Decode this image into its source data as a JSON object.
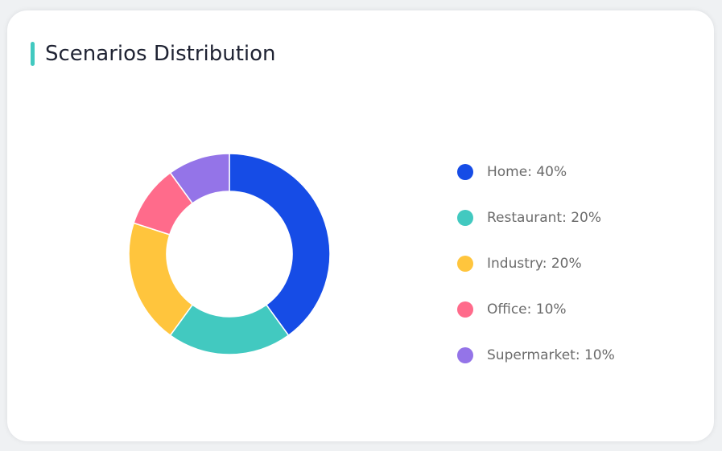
{
  "title": "Scenarios Distribution",
  "accent_color": "#42c9c0",
  "chart_data": {
    "type": "pie",
    "donut": true,
    "legend_position": "right",
    "series": [
      {
        "name": "Home",
        "value": 40,
        "label": "Home: 40%",
        "color": "#164ce6"
      },
      {
        "name": "Restaurant",
        "value": 20,
        "label": "Restaurant: 20%",
        "color": "#42c9c0"
      },
      {
        "name": "Industry",
        "value": 20,
        "label": "Industry: 20%",
        "color": "#ffc53d"
      },
      {
        "name": "Office",
        "value": 10,
        "label": "Office: 10%",
        "color": "#ff6b8b"
      },
      {
        "name": "Supermarket",
        "value": 10,
        "label": "Supermarket: 10%",
        "color": "#9474e8"
      }
    ]
  }
}
